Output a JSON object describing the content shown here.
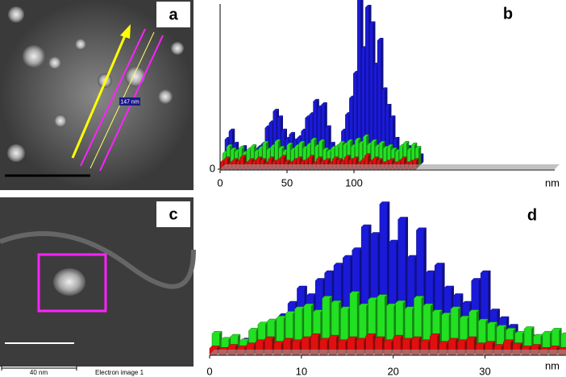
{
  "panels": {
    "a": {
      "label": "a",
      "measure": "147 nm"
    },
    "c": {
      "label": "c",
      "scale_text": "40 nm",
      "caption": "Electron image 1"
    }
  },
  "chart_data": [
    {
      "type": "bar",
      "label": "b",
      "x_unit": "nm",
      "x": [
        0,
        3,
        6,
        9,
        12,
        15,
        18,
        21,
        24,
        27,
        30,
        33,
        36,
        39,
        42,
        45,
        48,
        51,
        54,
        57,
        60,
        63,
        66,
        69,
        72,
        75,
        78,
        81,
        84,
        87,
        90,
        93,
        96,
        99,
        102,
        105,
        108,
        111,
        114,
        117,
        120,
        123,
        126,
        129,
        132,
        135,
        138,
        141,
        144
      ],
      "series": [
        {
          "color": "#1a1ad8",
          "values": [
            15,
            20,
            12,
            8,
            10,
            6,
            5,
            8,
            10,
            12,
            22,
            25,
            32,
            28,
            20,
            15,
            18,
            14,
            16,
            20,
            28,
            30,
            38,
            34,
            36,
            22,
            12,
            8,
            10,
            20,
            30,
            40,
            55,
            100,
            70,
            95,
            85,
            60,
            75,
            45,
            35,
            28,
            15,
            8,
            6,
            10,
            8,
            6,
            5
          ]
        },
        {
          "color": "#22e022",
          "values": [
            8,
            12,
            10,
            9,
            11,
            8,
            10,
            12,
            9,
            11,
            14,
            10,
            12,
            15,
            11,
            9,
            13,
            10,
            12,
            14,
            11,
            13,
            16,
            12,
            15,
            10,
            9,
            11,
            12,
            14,
            13,
            15,
            12,
            16,
            14,
            18,
            13,
            15,
            12,
            14,
            11,
            12,
            10,
            9,
            12,
            14,
            10,
            13,
            11
          ]
        },
        {
          "color": "#e01010",
          "values": [
            4,
            6,
            3,
            5,
            4,
            7,
            3,
            5,
            4,
            6,
            5,
            3,
            6,
            4,
            5,
            7,
            4,
            3,
            5,
            6,
            4,
            5,
            7,
            3,
            6,
            4,
            5,
            3,
            6,
            5,
            4,
            7,
            5,
            6,
            3,
            5,
            8,
            4,
            6,
            5,
            3,
            4,
            5,
            3,
            4,
            6,
            3,
            4,
            5
          ]
        }
      ],
      "xlim": [
        0,
        250
      ],
      "xticks": [
        0,
        50,
        100
      ],
      "ylim": [
        0,
        100
      ],
      "yticks": [
        0
      ]
    },
    {
      "type": "bar",
      "label": "d",
      "x_unit": "nm",
      "x": [
        0,
        1,
        2,
        3,
        4,
        5,
        6,
        7,
        8,
        9,
        10,
        11,
        12,
        13,
        14,
        15,
        16,
        17,
        18,
        19,
        20,
        21,
        22,
        23,
        24,
        25,
        26,
        27,
        28,
        29,
        30,
        31,
        32,
        33,
        34,
        35,
        36,
        37,
        38
      ],
      "series": [
        {
          "color": "#1a1ad8",
          "values": [
            5,
            3,
            4,
            6,
            8,
            12,
            15,
            22,
            30,
            40,
            35,
            45,
            50,
            55,
            60,
            65,
            80,
            75,
            95,
            70,
            85,
            60,
            78,
            50,
            55,
            40,
            35,
            30,
            45,
            50,
            25,
            20,
            15,
            10,
            8,
            5,
            4,
            3,
            2
          ]
        },
        {
          "color": "#22e022",
          "values": [
            12,
            8,
            10,
            7,
            14,
            18,
            20,
            22,
            25,
            28,
            30,
            26,
            35,
            32,
            28,
            38,
            30,
            34,
            36,
            30,
            32,
            28,
            35,
            30,
            26,
            24,
            28,
            22,
            26,
            20,
            18,
            16,
            14,
            12,
            15,
            10,
            12,
            14,
            11
          ]
        },
        {
          "color": "#e01010",
          "values": [
            4,
            3,
            5,
            4,
            6,
            8,
            10,
            7,
            9,
            8,
            10,
            12,
            9,
            11,
            8,
            10,
            9,
            12,
            10,
            8,
            11,
            9,
            10,
            8,
            12,
            7,
            9,
            8,
            10,
            6,
            7,
            5,
            8,
            6,
            4,
            5,
            3,
            4,
            3
          ]
        }
      ],
      "xlim": [
        0,
        39
      ],
      "xticks": [
        0,
        10,
        20,
        30
      ],
      "ylim": [
        0,
        100
      ]
    }
  ]
}
